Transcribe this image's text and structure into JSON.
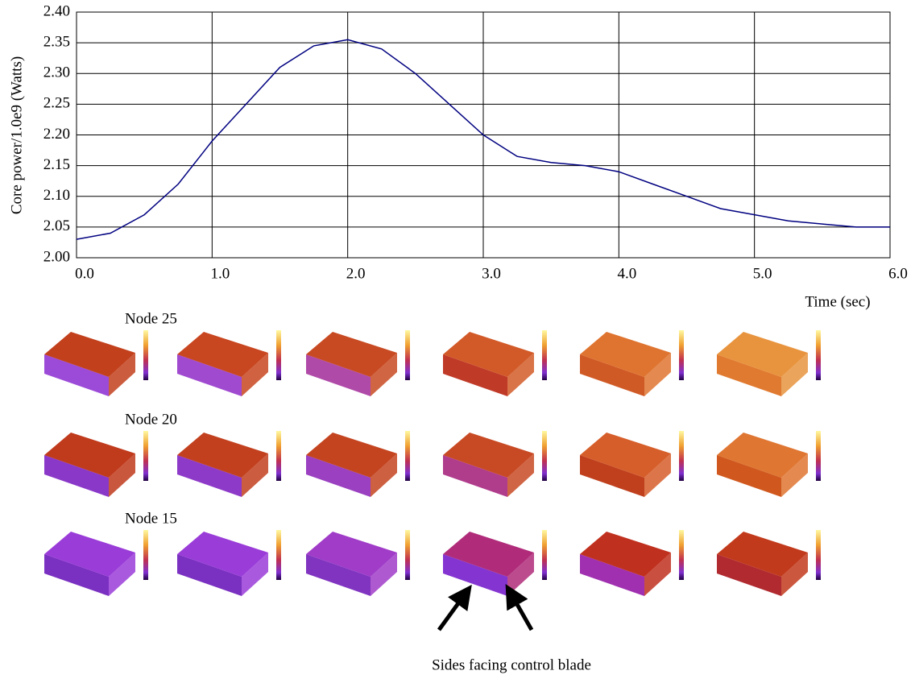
{
  "chart_data": {
    "type": "line",
    "y_label": "Core power/1.0e9 (Watts)",
    "x_label": "Time (sec)",
    "x": [
      0,
      0.25,
      0.5,
      0.75,
      1.0,
      1.25,
      1.5,
      1.75,
      2.0,
      2.25,
      2.5,
      2.75,
      3.0,
      3.25,
      3.5,
      3.75,
      4.0,
      4.25,
      4.5,
      4.75,
      5.0,
      5.25,
      5.5,
      5.75,
      6.0
    ],
    "values": [
      2.03,
      2.04,
      2.07,
      2.12,
      2.19,
      2.25,
      2.31,
      2.345,
      2.355,
      2.34,
      2.3,
      2.25,
      2.2,
      2.165,
      2.155,
      2.15,
      2.14,
      2.12,
      2.1,
      2.08,
      2.07,
      2.06,
      2.055,
      2.05,
      2.05
    ],
    "color": "#000080",
    "xlim": [
      0,
      6
    ],
    "ylim": [
      2.0,
      2.4
    ],
    "xticks": [
      {
        "value": 0,
        "label": "0.0"
      },
      {
        "value": 1,
        "label": "1.0"
      },
      {
        "value": 2,
        "label": "2.0"
      },
      {
        "value": 3,
        "label": "3.0"
      },
      {
        "value": 4,
        "label": "4.0"
      },
      {
        "value": 5,
        "label": "5.0"
      },
      {
        "value": 6,
        "label": "6.0"
      }
    ],
    "yticks": [
      {
        "value": 2.0,
        "label": "2.00"
      },
      2.05,
      {
        "value": 2.1,
        "label": "2.10"
      },
      2.15,
      {
        "value": 2.2,
        "label": "2.20"
      },
      2.25,
      {
        "value": 2.3,
        "label": "2.30"
      },
      2.35,
      {
        "value": 2.4,
        "label": "2.40"
      }
    ],
    "grid": true
  },
  "figure": {
    "row_labels": [
      "Node 25",
      "Node 20",
      "Node 15"
    ],
    "annotation": "Sides facing control blade"
  }
}
